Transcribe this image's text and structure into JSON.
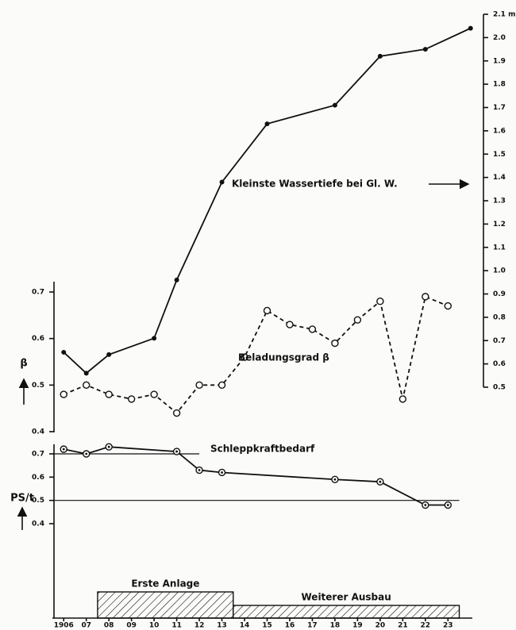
{
  "chart_data": [
    {
      "type": "line",
      "axis_side": "right",
      "series_name": "Kleinste Wassertiefe bei Gl. W.",
      "line_style": "solid",
      "marker": "dot",
      "x": [
        1906,
        1907,
        1908,
        1910,
        1911,
        1913,
        1915,
        1918,
        1920,
        1922,
        1924
      ],
      "values": [
        0.65,
        0.56,
        0.64,
        0.71,
        0.96,
        1.38,
        1.63,
        1.71,
        1.92,
        1.95,
        2.04
      ],
      "ylim": [
        0.5,
        2.1
      ],
      "yticks": [
        0.5,
        0.6,
        0.7,
        0.8,
        0.9,
        {
          "value": 1,
          "label": "1.0"
        },
        1.1,
        1.2,
        1.3,
        1.4,
        1.5,
        1.6,
        1.7,
        1.8,
        1.9,
        {
          "value": 2,
          "label": "2.0"
        },
        {
          "value": 2.1,
          "label": "2.1 m"
        }
      ]
    },
    {
      "type": "line",
      "axis_side": "left",
      "series_name": "Beladungsgrad β",
      "ylabel": "β",
      "line_style": "dashed",
      "marker": "ring",
      "x": [
        1906,
        1907,
        1908,
        1909,
        1910,
        1911,
        1912,
        1913,
        1914,
        1915,
        1916,
        1917,
        1918,
        1919,
        1920,
        1921,
        1922,
        1923
      ],
      "values": [
        0.48,
        0.5,
        0.48,
        0.47,
        0.48,
        0.44,
        0.5,
        0.5,
        0.56,
        0.66,
        0.63,
        0.62,
        0.59,
        0.64,
        0.68,
        0.47,
        0.69,
        0.67
      ],
      "ylim": [
        0.4,
        0.7
      ],
      "yticks": [
        0.4,
        0.5,
        0.6,
        0.7
      ]
    },
    {
      "type": "line",
      "axis_side": "left",
      "series_name": "Schleppkraftbedarf",
      "ylabel": "PS/t",
      "line_style": "solid",
      "marker": "ring-dot",
      "x": [
        1906,
        1907,
        1908,
        1911,
        1912,
        1913,
        1918,
        1920,
        1922,
        1923
      ],
      "values": [
        0.72,
        0.7,
        0.73,
        0.71,
        0.63,
        0.62,
        0.59,
        0.58,
        0.48,
        0.48
      ],
      "ylim": [
        0.4,
        0.7
      ],
      "yticks": [
        0.4,
        0.5,
        0.6,
        0.7
      ],
      "hlines": [
        {
          "value": 0.7,
          "xlim": [
            1905.5,
            1912
          ]
        },
        {
          "value": 0.5,
          "xlim": [
            1905.5,
            1923.5
          ]
        }
      ]
    },
    {
      "type": "periods",
      "periods": [
        {
          "label": "Erste Anlage",
          "start": 1907.5,
          "end": 1913.5
        },
        {
          "label": "Weiterer Ausbau",
          "start": 1913.5,
          "end": 1923.5
        }
      ],
      "xlim": [
        1905.5,
        1924.5
      ],
      "xticks": [
        1906,
        {
          "value": 1907,
          "label": "07"
        },
        {
          "value": 1908,
          "label": "08"
        },
        {
          "value": 1909,
          "label": "09"
        },
        {
          "value": 1910,
          "label": "10"
        },
        {
          "value": 1911,
          "label": "11"
        },
        {
          "value": 1912,
          "label": "12"
        },
        {
          "value": 1913,
          "label": "13"
        },
        {
          "value": 1914,
          "label": "14"
        },
        {
          "value": 1915,
          "label": "15"
        },
        {
          "value": 1916,
          "label": "16"
        },
        {
          "value": 1917,
          "label": "17"
        },
        {
          "value": 1918,
          "label": "18"
        },
        {
          "value": 1919,
          "label": "19"
        },
        {
          "value": 1920,
          "label": "20"
        },
        {
          "value": 1921,
          "label": "21"
        },
        {
          "value": 1922,
          "label": "22"
        },
        {
          "value": 1923,
          "label": "23"
        }
      ]
    }
  ]
}
